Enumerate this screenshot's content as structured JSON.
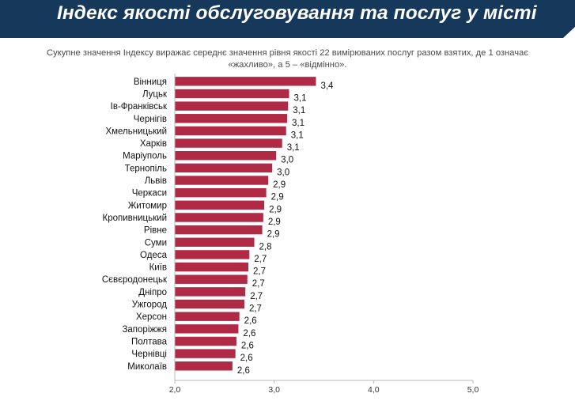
{
  "title": "Індекс якості обслуговування та послуг у місті",
  "subtitle": "Сукупне значення Індексу виражає середнє значення рівня якості 22 вимірюваних послуг разом взятих, де 1 означає «жахливо», а 5 – «відмінно».",
  "colors": {
    "header": "#16385a",
    "bar": "#b02a45",
    "axis": "#b8b8b8",
    "text": "#111111"
  },
  "chart_data": {
    "type": "bar",
    "orientation": "horizontal",
    "categories": [
      "Вінниця",
      "Луцьк",
      "Ів-Франківськ",
      "Чернігів",
      "Хмельницький",
      "Харків",
      "Маріуполь",
      "Тернопіль",
      "Львів",
      "Черкаси",
      "Житомир",
      "Кропивницький",
      "Рівне",
      "Суми",
      "Одеса",
      "Київ",
      "Сєвєродонецьк",
      "Дніпро",
      "Ужгород",
      "Херсон",
      "Запоріжжя",
      "Полтава",
      "Чернівці",
      "Миколаїв"
    ],
    "values": [
      3.42,
      3.15,
      3.14,
      3.13,
      3.12,
      3.08,
      3.02,
      2.98,
      2.94,
      2.92,
      2.9,
      2.89,
      2.88,
      2.8,
      2.75,
      2.74,
      2.73,
      2.71,
      2.7,
      2.65,
      2.64,
      2.62,
      2.61,
      2.58
    ],
    "data_labels": [
      "3,4",
      "3,1",
      "3,1",
      "3,1",
      "3,1",
      "3,1",
      "3,0",
      "3,0",
      "2,9",
      "2,9",
      "2,9",
      "2,9",
      "2,9",
      "2,8",
      "2,7",
      "2,7",
      "2,7",
      "2,7",
      "2,7",
      "2,6",
      "2,6",
      "2,6",
      "2,6",
      "2,6"
    ],
    "xlim": [
      2.0,
      5.0
    ],
    "xticks": [
      2.0,
      3.0,
      4.0,
      5.0
    ],
    "xtick_labels": [
      "2,0",
      "3,0",
      "4,0",
      "5,0"
    ],
    "grid": false,
    "legend": "none"
  }
}
